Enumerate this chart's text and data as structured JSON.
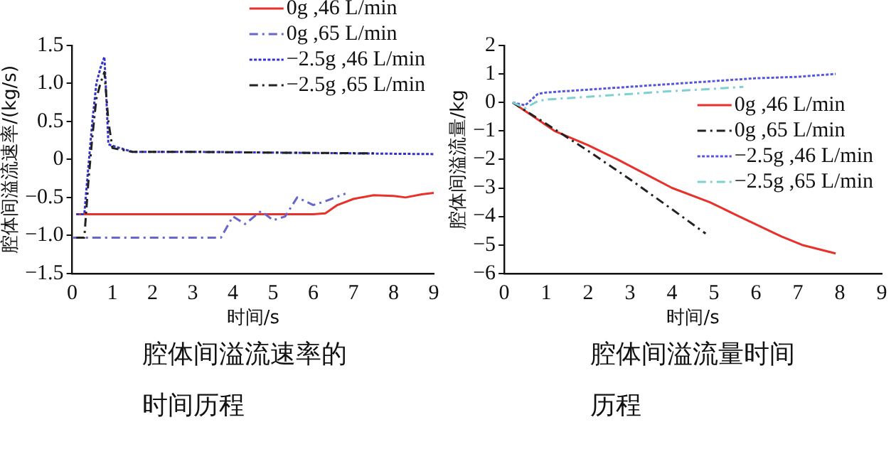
{
  "chart_data": [
    {
      "type": "line",
      "title": "腔体间溢流速率的时间历程",
      "xlabel": "时间/s",
      "ylabel": "腔体间溢流速率/(kg/s)",
      "xlim": [
        0,
        9
      ],
      "xticks": [
        0,
        1,
        2,
        3,
        4,
        5,
        6,
        7,
        8,
        9
      ],
      "ylim": [
        -1.5,
        1.5
      ],
      "yticks": [
        {
          "value": -1.5,
          "label": "−1.5"
        },
        {
          "value": -1.0,
          "label": "−1.0"
        },
        {
          "value": -0.5,
          "label": "−0.5"
        },
        0,
        {
          "value": 0.5,
          "label": "0.5"
        },
        {
          "value": 1.0,
          "label": "1.0"
        },
        {
          "value": 1.5,
          "label": "1.5"
        }
      ],
      "grid": false,
      "legend": "top right",
      "series": [
        {
          "name": "0g ,46 L/min",
          "color": "#e8312a",
          "line_style": "solid",
          "x": [
            0.1,
            1,
            2,
            3,
            4,
            5,
            6,
            6.3,
            6.6,
            7,
            7.5,
            8,
            8.3,
            8.7,
            9
          ],
          "values": [
            -0.72,
            -0.72,
            -0.72,
            -0.72,
            -0.72,
            -0.72,
            -0.72,
            -0.71,
            -0.6,
            -0.52,
            -0.47,
            -0.48,
            -0.5,
            -0.46,
            -0.44
          ]
        },
        {
          "name": "0g ,65 L/min",
          "color": "#6666cc",
          "line_style": "dashed",
          "x": [
            0.02,
            1,
            2,
            3,
            3.7,
            4.0,
            4.3,
            4.7,
            5.0,
            5.3,
            5.6,
            6.0,
            6.3,
            6.8
          ],
          "values": [
            -1.03,
            -1.03,
            -1.03,
            -1.03,
            -1.03,
            -0.75,
            -0.85,
            -0.68,
            -0.8,
            -0.75,
            -0.5,
            -0.6,
            -0.55,
            -0.45
          ]
        },
        {
          "name": "−2.5g ,46 L/min",
          "color": "#3333cc",
          "line_style": "dotted",
          "x": [
            0.1,
            0.3,
            0.4,
            0.5,
            0.6,
            0.7,
            0.8,
            0.85,
            0.9,
            1.0,
            1.5,
            3,
            5,
            7,
            9
          ],
          "values": [
            -0.72,
            -0.72,
            -0.1,
            0.5,
            1.0,
            1.2,
            1.35,
            0.8,
            0.2,
            0.18,
            0.1,
            0.1,
            0.09,
            0.08,
            0.07
          ]
        },
        {
          "name": "−2.5g ,65 L/min",
          "color": "#222222",
          "line_style": "dashed",
          "x": [
            0.1,
            0.3,
            0.4,
            0.5,
            0.6,
            0.7,
            0.8,
            0.9,
            1.0,
            1.5,
            3,
            5,
            7.5
          ],
          "values": [
            -1.03,
            -1.03,
            -0.3,
            0.3,
            0.8,
            1.0,
            1.15,
            0.5,
            0.15,
            0.1,
            0.1,
            0.09,
            0.08
          ]
        }
      ]
    },
    {
      "type": "line",
      "title": "腔体间溢流量时间历程",
      "xlabel": "时间/s",
      "ylabel": "腔体间溢流量/kg",
      "xlim": [
        0,
        9
      ],
      "xticks": [
        0,
        1,
        2,
        3,
        4,
        5,
        6,
        7,
        8,
        9
      ],
      "ylim": [
        -6,
        2
      ],
      "yticks": [
        -6,
        -5,
        -4,
        -3,
        -2,
        -1,
        0,
        1,
        2
      ],
      "grid": false,
      "legend": "right",
      "series": [
        {
          "name": "0g ,46 L/min",
          "color": "#e8312a",
          "line_style": "solid",
          "x": [
            0.2,
            0.5,
            1.2,
            2,
            2.7,
            4,
            4.9,
            5.6,
            6.6,
            7.1,
            7.9
          ],
          "values": [
            0,
            -0.3,
            -1,
            -1.5,
            -2,
            -3,
            -3.5,
            -4,
            -4.7,
            -5,
            -5.3
          ]
        },
        {
          "name": "0g ,65 L/min",
          "color": "#222222",
          "line_style": "dashed",
          "x": [
            0.2,
            1,
            2,
            3,
            4,
            4.8
          ],
          "values": [
            0,
            -0.75,
            -1.7,
            -2.7,
            -3.75,
            -4.6
          ]
        },
        {
          "name": "−2.5g ,46 L/min",
          "color": "#5555dd",
          "line_style": "dotted",
          "x": [
            0.2,
            0.5,
            0.8,
            1,
            2,
            3,
            4,
            5,
            6,
            7,
            7.9
          ],
          "values": [
            0,
            -0.1,
            0.3,
            0.35,
            0.45,
            0.55,
            0.65,
            0.75,
            0.85,
            0.9,
            1.0
          ]
        },
        {
          "name": "−2.5g ,65 L/min",
          "color": "#7fd0d0",
          "line_style": "dashed",
          "x": [
            0.2,
            0.5,
            0.8,
            1,
            2,
            3,
            4,
            5,
            5.7
          ],
          "values": [
            0,
            -0.2,
            0.05,
            0.1,
            0.2,
            0.3,
            0.4,
            0.48,
            0.55
          ]
        }
      ]
    }
  ]
}
